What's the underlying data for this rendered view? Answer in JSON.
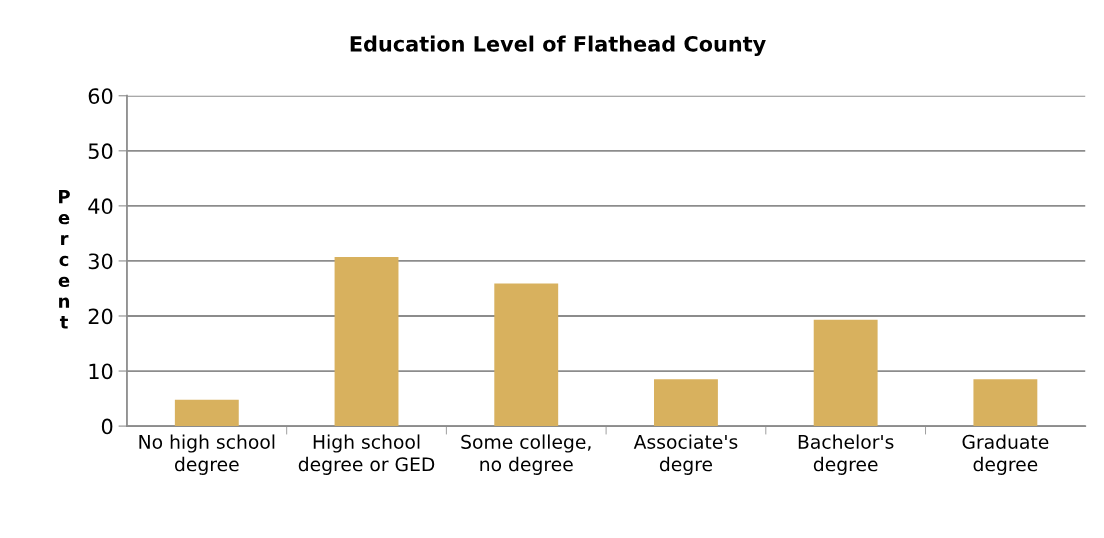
{
  "chart_data": {
    "type": "bar",
    "title": "Education Level of Flathead County",
    "ylabel": "Percent",
    "categories": [
      "No high school degree",
      "High school degree or GED",
      "Some college, no degree",
      "Associate's degre",
      "Bachelor's degree",
      "Graduate degree"
    ],
    "values": [
      4.8,
      30.7,
      25.9,
      8.5,
      19.3,
      8.5
    ],
    "color": "#d8b15e",
    "ylim": [
      0,
      60
    ],
    "yticks": [
      0,
      10,
      20,
      30,
      40,
      50,
      60
    ],
    "grid": "y",
    "legend": false
  }
}
